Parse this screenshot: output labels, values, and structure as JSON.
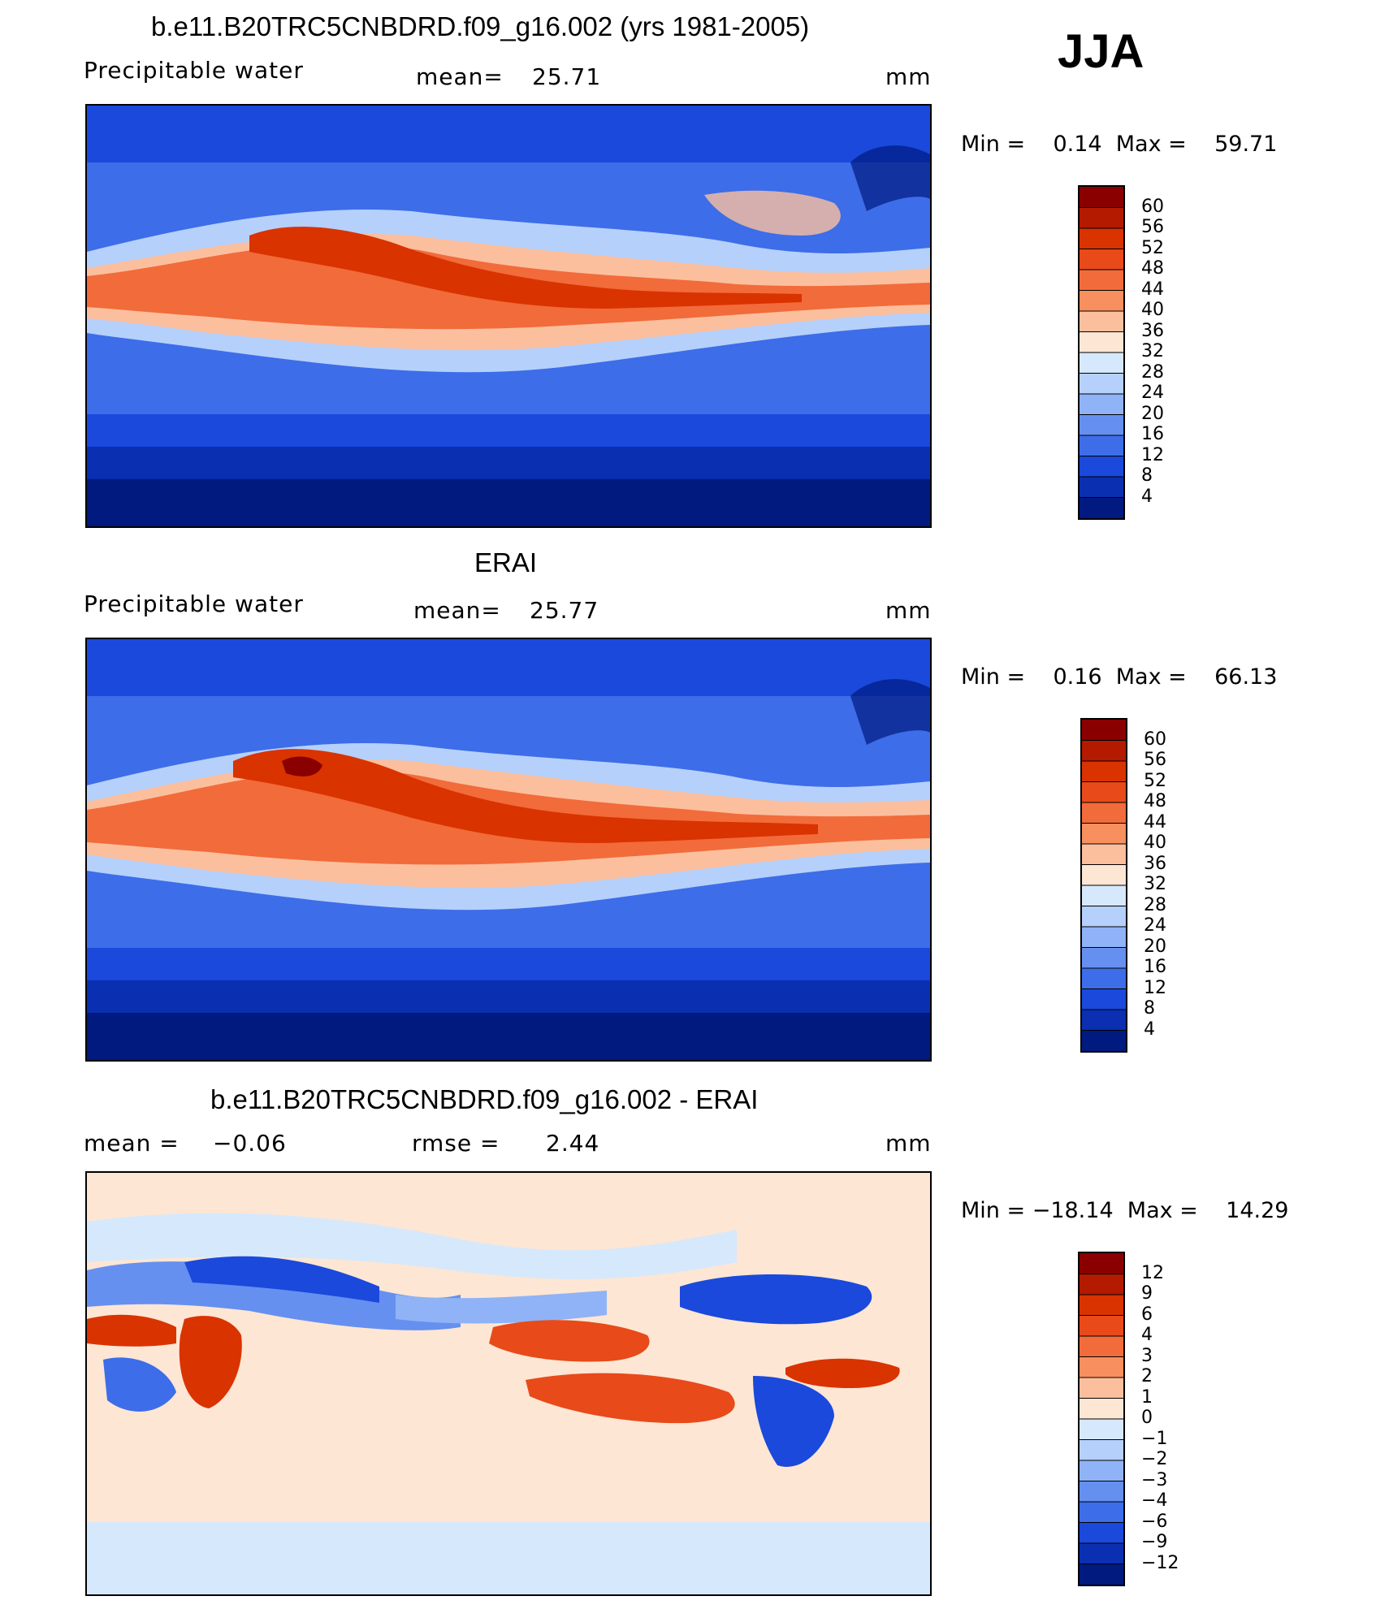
{
  "season": "JJA",
  "panels": [
    {
      "title": "b.e11.B20TRC5CNBDRD.f09_g16.002 (yrs 1981-2005)",
      "variable": "Precipitable water",
      "stat1_label": "mean=",
      "stat1_value": "25.71",
      "stat2_label": "",
      "stat2_value": "",
      "units": "mm",
      "minmax": "Min =    0.14  Max =    59.71",
      "levels": [
        "60",
        "56",
        "52",
        "48",
        "44",
        "40",
        "36",
        "32",
        "28",
        "24",
        "20",
        "16",
        "12",
        "8",
        "4"
      ],
      "colors": [
        "#8a0000",
        "#b31a00",
        "#d93300",
        "#e84a1a",
        "#f26b3a",
        "#f78f5e",
        "#fbbf9e",
        "#fde6d4",
        "#d6e8fb",
        "#b5d0fb",
        "#8fb3f6",
        "#6690f0",
        "#3d6de8",
        "#1a49dc",
        "#0a2fb0",
        "#001a80"
      ]
    },
    {
      "title": "ERAI",
      "variable": "Precipitable water",
      "stat1_label": "mean=",
      "stat1_value": "25.77",
      "stat2_label": "",
      "stat2_value": "",
      "units": "mm",
      "minmax": "Min =    0.16  Max =    66.13",
      "levels": [
        "60",
        "56",
        "52",
        "48",
        "44",
        "40",
        "36",
        "32",
        "28",
        "24",
        "20",
        "16",
        "12",
        "8",
        "4"
      ],
      "colors": [
        "#8a0000",
        "#b31a00",
        "#d93300",
        "#e84a1a",
        "#f26b3a",
        "#f78f5e",
        "#fbbf9e",
        "#fde6d4",
        "#d6e8fb",
        "#b5d0fb",
        "#8fb3f6",
        "#6690f0",
        "#3d6de8",
        "#1a49dc",
        "#0a2fb0",
        "#001a80"
      ]
    },
    {
      "title": "b.e11.B20TRC5CNBDRD.f09_g16.002 - ERAI",
      "variable": "",
      "stat1_label": "mean =",
      "stat1_value": "−0.06",
      "stat2_label": "rmse =",
      "stat2_value": "2.44",
      "units": "mm",
      "minmax": "Min = −18.14  Max =    14.29",
      "levels": [
        "12",
        "9",
        "6",
        "4",
        "3",
        "2",
        "1",
        "0",
        "−1",
        "−2",
        "−3",
        "−4",
        "−6",
        "−9",
        "−12"
      ],
      "colors": [
        "#8a0000",
        "#b31a00",
        "#d93300",
        "#e84a1a",
        "#f26b3a",
        "#f78f5e",
        "#fbbf9e",
        "#fde6d4",
        "#d6e8fb",
        "#b5d0fb",
        "#8fb3f6",
        "#6690f0",
        "#3d6de8",
        "#1a49dc",
        "#0a2fb0",
        "#001a80"
      ]
    }
  ]
}
